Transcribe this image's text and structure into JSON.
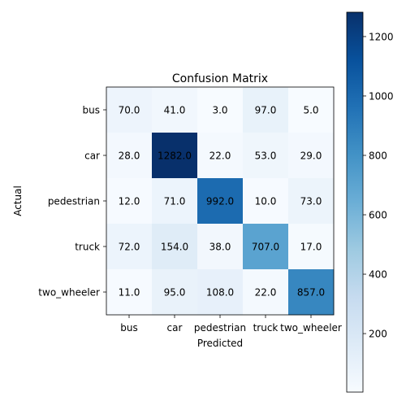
{
  "chart_data": {
    "type": "heatmap",
    "title": "Confusion Matrix",
    "xlabel": "Predicted",
    "ylabel": "Actual",
    "x_categories": [
      "bus",
      "car",
      "pedestrian",
      "truck",
      "two_wheeler"
    ],
    "y_categories": [
      "bus",
      "car",
      "pedestrian",
      "truck",
      "two_wheeler"
    ],
    "matrix": [
      [
        70,
        41,
        3,
        97,
        5
      ],
      [
        28,
        1282,
        22,
        53,
        29
      ],
      [
        12,
        71,
        992,
        10,
        73
      ],
      [
        72,
        154,
        38,
        707,
        17
      ],
      [
        11,
        95,
        108,
        22,
        857
      ]
    ],
    "cell_labels": [
      [
        "70.0",
        "41.0",
        "3.0",
        "97.0",
        "5.0"
      ],
      [
        "28.0",
        "1282.0",
        "22.0",
        "53.0",
        "29.0"
      ],
      [
        "12.0",
        "71.0",
        "992.0",
        "10.0",
        "73.0"
      ],
      [
        "72.0",
        "154.0",
        "38.0",
        "707.0",
        "17.0"
      ],
      [
        "11.0",
        "95.0",
        "108.0",
        "22.0",
        "857.0"
      ]
    ],
    "colormap": "Blues",
    "colorbar": {
      "min": 3,
      "max": 1282,
      "ticks": [
        200,
        400,
        600,
        800,
        1000,
        1200
      ],
      "tick_labels": [
        "200",
        "400",
        "600",
        "800",
        "1000",
        "1200"
      ]
    },
    "grid": false
  }
}
